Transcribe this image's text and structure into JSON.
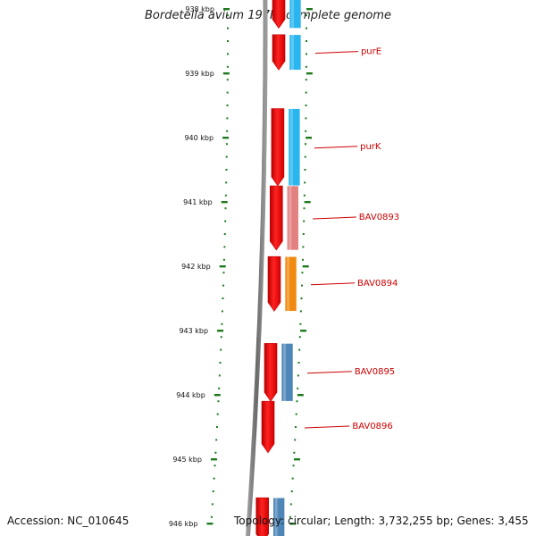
{
  "title": "Bordetella avium 197N, complete genome",
  "footer": {
    "accession": "Accession: NC_010645",
    "topology": "Topology: circular; Length: 3,732,255 bp; Genes: 3,455"
  },
  "axis": {
    "ticks": [
      {
        "kbp": 938,
        "label": "938 kbp"
      },
      {
        "kbp": 939,
        "label": "939 kbp"
      },
      {
        "kbp": 940,
        "label": "940 kbp"
      },
      {
        "kbp": 941,
        "label": "941 kbp"
      },
      {
        "kbp": 942,
        "label": "942 kbp"
      },
      {
        "kbp": 943,
        "label": "943 kbp"
      },
      {
        "kbp": 944,
        "label": "944 kbp"
      },
      {
        "kbp": 945,
        "label": "945 kbp"
      },
      {
        "kbp": 946,
        "label": "946 kbp"
      }
    ]
  },
  "genes": [
    {
      "start": 937.85,
      "end": 938.3,
      "cds_color": "#29b6ee",
      "label": ""
    },
    {
      "start": 938.4,
      "end": 938.95,
      "cds_color": "#29b6ee",
      "label": "purE"
    },
    {
      "start": 939.55,
      "end": 940.75,
      "cds_color": "#29b6ee",
      "label": "purK"
    },
    {
      "start": 940.75,
      "end": 941.75,
      "cds_color": "#e38080",
      "label": "BAV0893"
    },
    {
      "start": 941.85,
      "end": 942.7,
      "cds_color": "#f08a10",
      "label": "BAV0894"
    },
    {
      "start": 943.2,
      "end": 944.1,
      "cds_color": "#4f86b8",
      "label": "BAV0895"
    },
    {
      "start": 944.1,
      "end": 944.9,
      "cds_color": null,
      "label": "BAV0896"
    },
    {
      "start": 945.6,
      "end": 946.3,
      "cds_color": "#4f86b8",
      "label": ""
    }
  ],
  "colors": {
    "gene": "#ee1111",
    "gene_dark": "#c40000",
    "label": "#cc0000",
    "tick": "#1f7a1f",
    "backbone": "#7a7a7a"
  }
}
